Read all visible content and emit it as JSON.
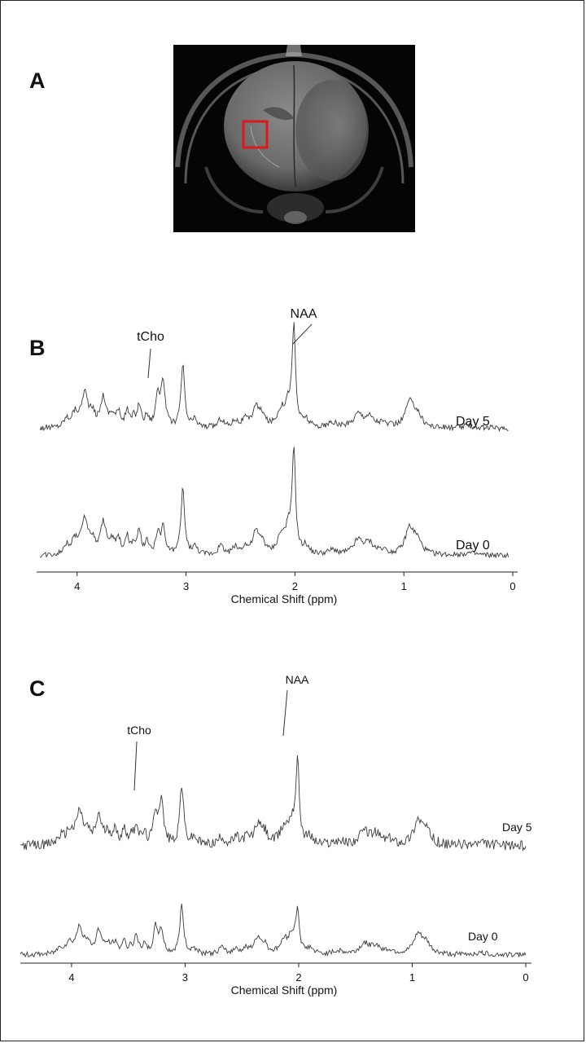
{
  "panel_letters": {
    "a": "A",
    "b": "B",
    "c": "C"
  },
  "mri_image": {
    "roi_box_color": "#e0161b"
  },
  "chart_data": [
    {
      "type": "line",
      "panel": "B",
      "xlabel": "Chemical Shift (ppm)",
      "x_ticks": [
        "4",
        "3",
        "2",
        "1",
        "0"
      ],
      "xlim": [
        4.2,
        0
      ],
      "x_reversed": true,
      "series": [
        {
          "name": "Day 5"
        },
        {
          "name": "Day 0"
        }
      ],
      "peak_labels": [
        {
          "text": "tCho",
          "ppm": 3.22
        },
        {
          "text": "NAA",
          "ppm": 2.01
        }
      ],
      "grid": false
    },
    {
      "type": "line",
      "panel": "C",
      "xlabel": "Chemical Shift (ppm)",
      "x_ticks": [
        "4",
        "3",
        "2",
        "1",
        "0"
      ],
      "xlim": [
        4.2,
        0
      ],
      "x_reversed": true,
      "series": [
        {
          "name": "Day 5"
        },
        {
          "name": "Day 0"
        }
      ],
      "peak_labels": [
        {
          "text": "tCho",
          "ppm": 3.22
        },
        {
          "text": "NAA",
          "ppm": 2.01
        }
      ],
      "grid": false
    }
  ]
}
